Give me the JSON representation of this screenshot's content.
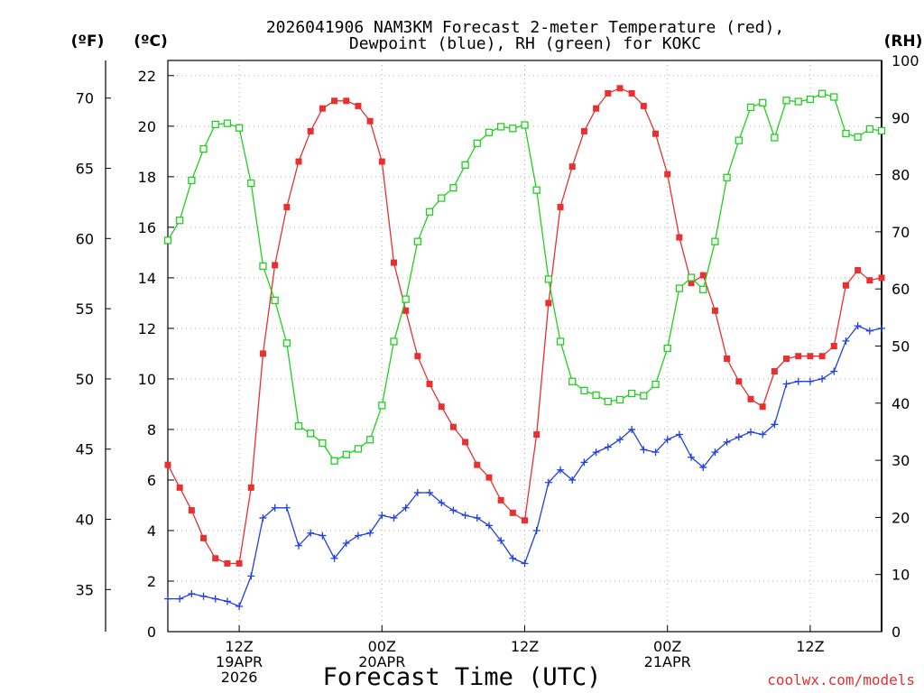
{
  "chart_data": {
    "type": "line",
    "title": "2026041906 NAM3KM Forecast 2-meter Temperature (red),",
    "title_line2": "Dewpoint (blue), RH (green) for KOKC",
    "xlabel": "Forecast Time (UTC)",
    "credit": "coolwx.com/models",
    "units": {
      "fahrenheit": "(ºF)",
      "celsius": "(ºC)",
      "rh": "(RH)"
    },
    "x_hours_range": [
      6,
      66
    ],
    "x_ticks": [
      {
        "hour": 12,
        "lines": [
          "12Z",
          "19APR",
          "2026"
        ]
      },
      {
        "hour": 24,
        "lines": [
          "00Z",
          "20APR"
        ]
      },
      {
        "hour": 36,
        "lines": [
          "12Z"
        ]
      },
      {
        "hour": 48,
        "lines": [
          "00Z",
          "21APR"
        ]
      },
      {
        "hour": 60,
        "lines": [
          "12Z"
        ]
      }
    ],
    "ylim_c": [
      0,
      22.6
    ],
    "yticks_c": [
      "0",
      "2",
      "4",
      "6",
      "8",
      "10",
      "12",
      "14",
      "16",
      "18",
      "20",
      "22"
    ],
    "yticks_f": [
      "35",
      "40",
      "45",
      "50",
      "55",
      "60",
      "65",
      "70"
    ],
    "ylim_rh": [
      0,
      100
    ],
    "yticks_rh": [
      "0",
      "10",
      "20",
      "30",
      "40",
      "50",
      "60",
      "70",
      "80",
      "90",
      "100"
    ],
    "series": [
      {
        "name": "2-meter Temperature",
        "color": "#e83030",
        "marker": "filled-square",
        "x": [
          6,
          7,
          8,
          9,
          10,
          11,
          12,
          13,
          14,
          15,
          16,
          17,
          18,
          19,
          20,
          21,
          22,
          23,
          24,
          25,
          26,
          27,
          28,
          29,
          30,
          31,
          32,
          33,
          34,
          35,
          36,
          37,
          38,
          39,
          40,
          41,
          42,
          43,
          44,
          45,
          46,
          47,
          48,
          49,
          50,
          51,
          52,
          53,
          54,
          55,
          56,
          57,
          58,
          59,
          60,
          61,
          62,
          63,
          64,
          65,
          66
        ],
        "values": [
          6.6,
          5.7,
          4.8,
          3.7,
          2.9,
          2.7,
          2.7,
          5.7,
          11.0,
          14.5,
          16.8,
          18.6,
          19.8,
          20.7,
          21.0,
          21.0,
          20.8,
          20.2,
          18.6,
          14.6,
          12.7,
          10.9,
          9.8,
          8.9,
          8.1,
          7.5,
          6.6,
          6.1,
          5.2,
          4.7,
          4.4,
          7.8,
          13.0,
          16.8,
          18.4,
          19.8,
          20.7,
          21.3,
          21.5,
          21.3,
          20.8,
          19.7,
          18.1,
          15.6,
          13.8,
          14.1,
          12.7,
          10.8,
          9.9,
          9.2,
          8.9,
          10.3,
          10.8,
          10.9,
          10.9,
          10.9,
          11.3,
          13.7,
          14.3,
          13.9,
          14.0
        ]
      },
      {
        "name": "Dewpoint",
        "color": "#2040e0",
        "marker": "plus",
        "x": [
          6,
          7,
          8,
          9,
          10,
          11,
          12,
          13,
          14,
          15,
          16,
          17,
          18,
          19,
          20,
          21,
          22,
          23,
          24,
          25,
          26,
          27,
          28,
          29,
          30,
          31,
          32,
          33,
          34,
          35,
          36,
          37,
          38,
          39,
          40,
          41,
          42,
          43,
          44,
          45,
          46,
          47,
          48,
          49,
          50,
          51,
          52,
          53,
          54,
          55,
          56,
          57,
          58,
          59,
          60,
          61,
          62,
          63,
          64,
          65,
          66
        ],
        "values": [
          1.3,
          1.3,
          1.5,
          1.4,
          1.3,
          1.2,
          1.0,
          2.2,
          4.5,
          4.9,
          4.9,
          3.4,
          3.9,
          3.8,
          2.9,
          3.5,
          3.8,
          3.9,
          4.6,
          4.5,
          4.9,
          5.5,
          5.5,
          5.1,
          4.8,
          4.6,
          4.5,
          4.2,
          3.6,
          2.9,
          2.7,
          4.0,
          5.9,
          6.4,
          6.0,
          6.7,
          7.1,
          7.3,
          7.6,
          8.0,
          7.2,
          7.1,
          7.6,
          7.8,
          6.9,
          6.5,
          7.1,
          7.5,
          7.7,
          7.9,
          7.8,
          8.2,
          9.8,
          9.9,
          9.9,
          10.0,
          10.3,
          11.5,
          12.1,
          11.9,
          12.0
        ]
      },
      {
        "name": "RH",
        "color": "#20d020",
        "marker": "open-square",
        "x": [
          6,
          7,
          8,
          9,
          10,
          11,
          12,
          13,
          14,
          15,
          16,
          17,
          18,
          19,
          20,
          21,
          22,
          23,
          24,
          25,
          26,
          27,
          28,
          29,
          30,
          31,
          32,
          33,
          34,
          35,
          36,
          37,
          38,
          39,
          40,
          41,
          42,
          43,
          44,
          45,
          46,
          47,
          48,
          49,
          50,
          51,
          52,
          53,
          54,
          55,
          56,
          57,
          58,
          59,
          60,
          61,
          62,
          63,
          64,
          65,
          66
        ],
        "values": [
          68.5,
          72,
          79,
          84.5,
          88.8,
          89,
          88.2,
          78.5,
          64,
          58,
          50.5,
          36,
          34.7,
          33,
          29.9,
          31,
          32,
          33.6,
          39.6,
          50.8,
          58.2,
          68.3,
          73.5,
          75.9,
          77.7,
          81.7,
          85.5,
          87.4,
          88.4,
          88.1,
          88.7,
          77.3,
          61.7,
          50.8,
          43.8,
          42.2,
          41.4,
          40.3,
          40.6,
          41.7,
          41.3,
          43.3,
          49.6,
          60.1,
          62,
          59.9,
          68.3,
          79.5,
          86,
          91.8,
          92.6,
          86.5,
          93,
          92.8,
          93.2,
          94.2,
          93.6,
          87.2,
          86.6,
          88,
          87.7
        ]
      }
    ],
    "grid": true
  }
}
